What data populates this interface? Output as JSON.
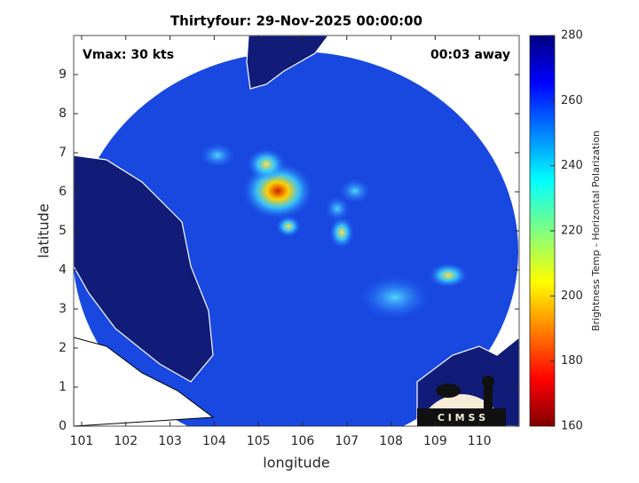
{
  "title": "Thirtyfour: 29-Nov-2025 00:00:00",
  "annotations": {
    "vmax": "Vmax: 30 kts",
    "away": "00:03 away"
  },
  "x_axis": {
    "label": "longitude",
    "lim": [
      100.82,
      110.9
    ],
    "ticks": [
      101,
      102,
      103,
      104,
      105,
      106,
      107,
      108,
      109,
      110
    ]
  },
  "y_axis": {
    "label": "latitude",
    "lim": [
      0,
      10
    ],
    "ticks": [
      0,
      1,
      2,
      3,
      4,
      5,
      6,
      7,
      8,
      9
    ]
  },
  "colorbar": {
    "label": "Brightness Temp - Horizontal Polarization",
    "lim": [
      160,
      280
    ],
    "ticks": [
      160,
      180,
      200,
      220,
      240,
      260,
      280
    ]
  },
  "logo": "C I M S S"
}
